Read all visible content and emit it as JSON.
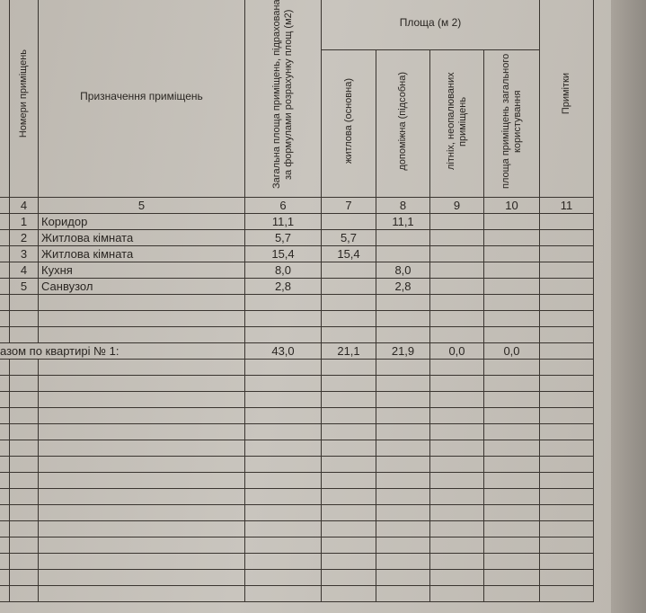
{
  "header": {
    "col4": "Номери приміщень",
    "col5": "Призначення приміщень",
    "col6": "Загальна площа приміщень, підрахована за формулами розрахунку площ (м2)",
    "area_group": "Площа (м 2)",
    "col7": "житлова (основна)",
    "col8": "допоміжна (підсобна)",
    "col9": "літніх, неопалюваних приміщень",
    "col10": "площа приміщень загального користування",
    "col11": "Примітки"
  },
  "column_numbers": [
    "4",
    "5",
    "6",
    "7",
    "8",
    "9",
    "10",
    "11"
  ],
  "rows": [
    {
      "no": "1",
      "name": "Коридор",
      "total": "11,1",
      "living": "",
      "aux": "11,1"
    },
    {
      "no": "2",
      "name": "Житлова кімната",
      "total": "5,7",
      "living": "5,7",
      "aux": ""
    },
    {
      "no": "3",
      "name": "Житлова кімната",
      "total": "15,4",
      "living": "15,4",
      "aux": ""
    },
    {
      "no": "4",
      "name": "Кухня",
      "total": "8,0",
      "living": "",
      "aux": "8,0"
    },
    {
      "no": "5",
      "name": "Санвузол",
      "total": "2,8",
      "living": "",
      "aux": "2,8"
    }
  ],
  "totals": {
    "label": "азом по квартирі № 1:",
    "total": "43,0",
    "living": "21,1",
    "aux": "21,9",
    "summer": "0,0",
    "common": "0,0"
  }
}
